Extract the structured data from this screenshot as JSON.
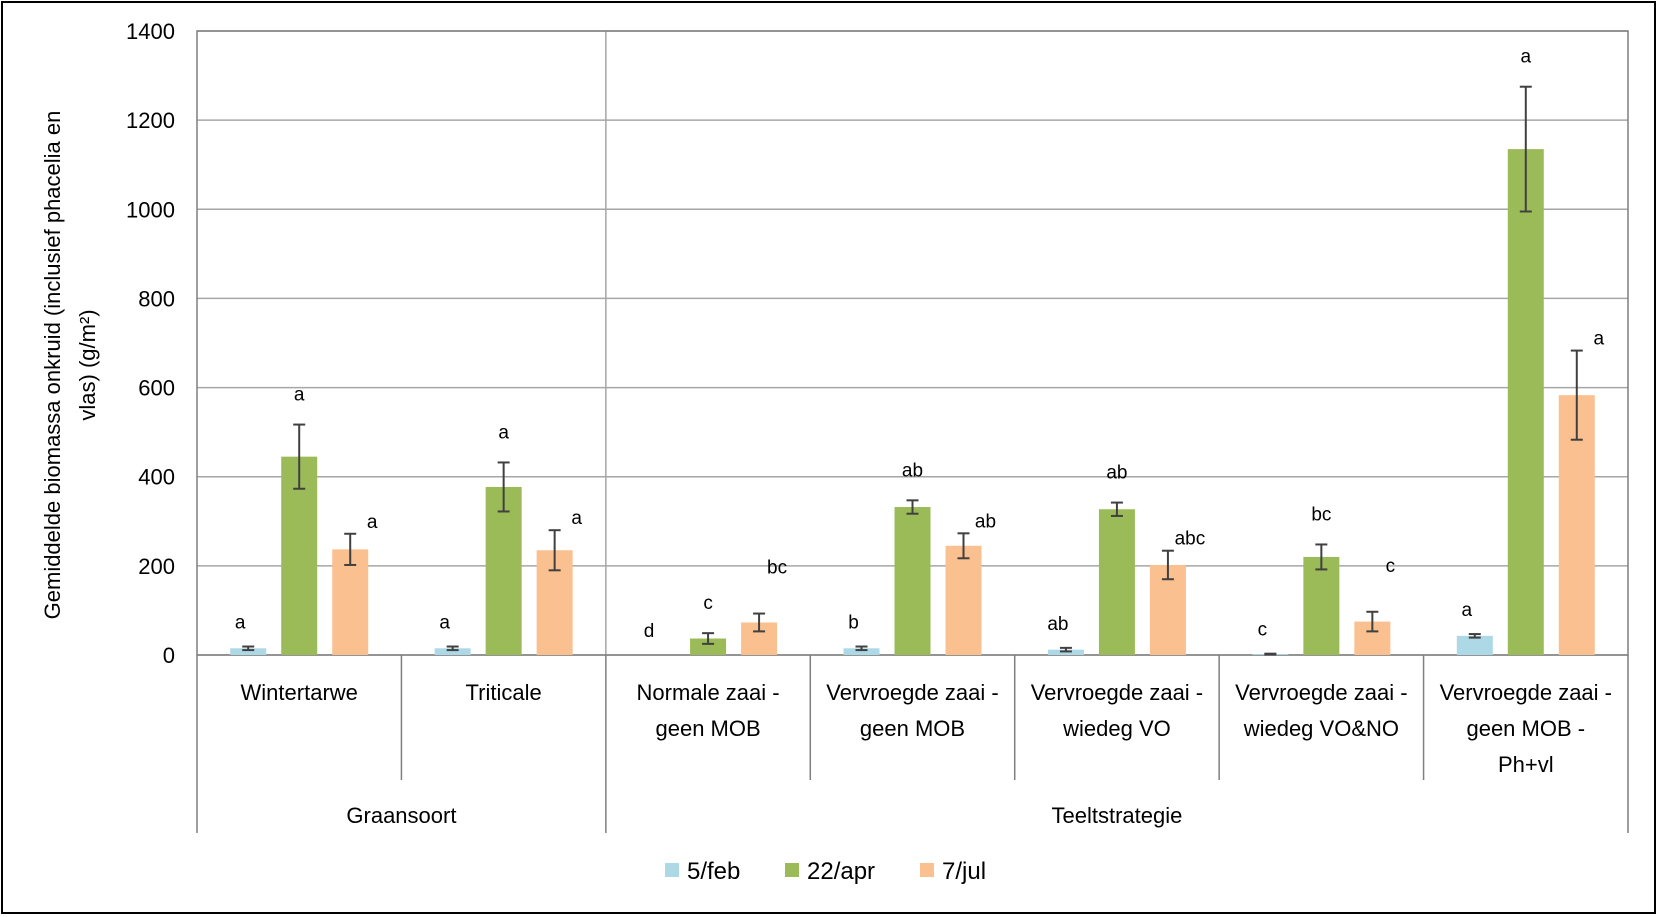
{
  "chart_data": {
    "type": "bar",
    "ylabel_line1": "Gemiddelde biomassa onkruid (inclusief phacelia en",
    "ylabel_line2": "vlas) (g/m²)",
    "ylim": [
      0,
      1400
    ],
    "ytick_step": 200,
    "grid": true,
    "legend_position": "bottom",
    "colors": {
      "5/feb": "#ADD8E6",
      "22/apr": "#9BBB59",
      "7/jul": "#FAC090"
    },
    "groups": [
      {
        "label": "Graansoort",
        "categories": [
          "Wintertarwe",
          "Triticale"
        ]
      },
      {
        "label": "Teeltstrategie",
        "categories": [
          "Normale zaai - geen MOB",
          "Vervroegde zaai - geen MOB",
          "Vervroegde zaai - wiedeg VO",
          "Vervroegde zaai - wiedeg VO&NO",
          "Vervroegde zaai - geen MOB - Ph+vl"
        ]
      }
    ],
    "categories": [
      [
        "Wintertarwe"
      ],
      [
        "Triticale"
      ],
      [
        "Normale zaai -",
        "geen MOB"
      ],
      [
        "Vervroegde zaai -",
        "geen MOB"
      ],
      [
        "Vervroegde zaai -",
        "wiedeg VO"
      ],
      [
        "Vervroegde zaai -",
        "wiedeg VO&NO"
      ],
      [
        "Vervroegde zaai -",
        "geen MOB -",
        "Ph+vl"
      ]
    ],
    "series": [
      {
        "name": "5/feb",
        "values": [
          15,
          15,
          0,
          15,
          12,
          2,
          43
        ],
        "errors": [
          4,
          4,
          0,
          4,
          4,
          1,
          4
        ],
        "letters": [
          "a",
          "a",
          "d",
          "b",
          "ab",
          "c",
          "a"
        ]
      },
      {
        "name": "22/apr",
        "values": [
          445,
          377,
          37,
          332,
          327,
          220,
          1135
        ],
        "errors": [
          72,
          55,
          12,
          15,
          15,
          28,
          140
        ],
        "letters": [
          "a",
          "a",
          "c",
          "ab",
          "ab",
          "bc",
          "a"
        ]
      },
      {
        "name": "7/jul",
        "values": [
          237,
          235,
          73,
          245,
          202,
          75,
          583
        ],
        "errors": [
          35,
          45,
          20,
          28,
          32,
          22,
          100
        ],
        "letters": [
          "a",
          "a",
          "bc",
          "ab",
          "abc",
          "c",
          "a"
        ]
      }
    ]
  }
}
